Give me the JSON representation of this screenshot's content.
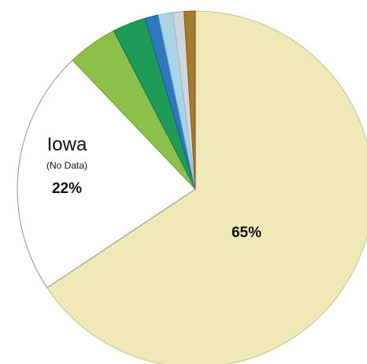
{
  "chart_data": {
    "type": "pie",
    "title": "",
    "start_angle_deg": -90,
    "slices": [
      {
        "value": 65,
        "color": "#efe9b8",
        "edge": "#c9c08a",
        "label": "65%"
      },
      {
        "value": 22,
        "color": "#ffffff",
        "edge": "#8f8f8f",
        "name": "Iowa",
        "note": "(No Data)",
        "label": "22%"
      },
      {
        "value": 4.5,
        "color": "#8cc04a",
        "edge": "#6f9e35"
      },
      {
        "value": 3,
        "color": "#1f9b58",
        "edge": "#167644"
      },
      {
        "value": 1.2,
        "color": "#2d78c0",
        "edge": "#1f5a93"
      },
      {
        "value": 1.3,
        "color": "#a9d4e8",
        "edge": "#86b5cb"
      },
      {
        "value": 1,
        "color": "#cfd6dc",
        "edge": "#aab2b8"
      },
      {
        "value": 1,
        "color": "#a57a2a",
        "edge": "#7f5c1d"
      }
    ]
  }
}
